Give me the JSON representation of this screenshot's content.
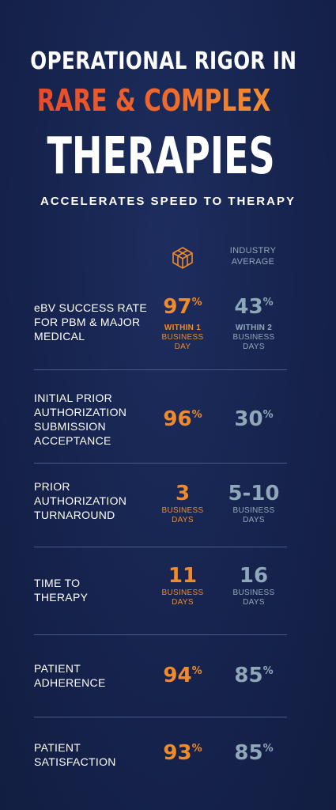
{
  "header": {
    "line1": "OPERATIONAL RIGOR IN",
    "line2": "RARE & COMPLEX",
    "line3": "THERAPIES",
    "subtitle": "ACCELERATES SPEED TO THERAPY"
  },
  "columns": {
    "ours_icon": "company-logo-icon",
    "industry_line1": "INDUSTRY",
    "industry_line2": "AVERAGE"
  },
  "colors": {
    "background": "#16234d",
    "accent_orange": "#f08a2b",
    "industry_blue": "#8fa8b9",
    "title_gradient_start": "#e84a2a",
    "title_gradient_end": "#f39a33"
  },
  "metrics": [
    {
      "label_lines": [
        "eBV SUCCESS RATE",
        "FOR PBM & MAJOR",
        "MEDICAL"
      ],
      "ours": {
        "value": "97",
        "suffix": "%",
        "sub_bold": "WITHIN 1",
        "sub_lines": [
          "BUSINESS",
          "DAY"
        ]
      },
      "industry": {
        "value": "43",
        "suffix": "%",
        "sub_bold": "WITHIN 2",
        "sub_lines": [
          "BUSINESS",
          "DAYS"
        ]
      }
    },
    {
      "label_lines": [
        "INITIAL PRIOR",
        "AUTHORIZATION",
        "SUBMISSION",
        "ACCEPTANCE"
      ],
      "ours": {
        "value": "96",
        "suffix": "%"
      },
      "industry": {
        "value": "30",
        "suffix": "%"
      }
    },
    {
      "label_lines": [
        "PRIOR",
        "AUTHORIZATION",
        "TURNAROUND"
      ],
      "ours": {
        "value": "3",
        "suffix": "",
        "sub_lines": [
          "BUSINESS",
          "DAYS"
        ]
      },
      "industry": {
        "value": "5-10",
        "suffix": "",
        "sub_lines": [
          "BUSINESS",
          "DAYS"
        ]
      }
    },
    {
      "label_lines": [
        "TIME TO",
        "THERAPY"
      ],
      "ours": {
        "value": "11",
        "suffix": "",
        "sub_lines": [
          "BUSINESS",
          "DAYS"
        ]
      },
      "industry": {
        "value": "16",
        "suffix": "",
        "sub_lines": [
          "BUSINESS",
          "DAYS"
        ]
      }
    },
    {
      "label_lines": [
        "PATIENT",
        "ADHERENCE"
      ],
      "ours": {
        "value": "94",
        "suffix": "%"
      },
      "industry": {
        "value": "85",
        "suffix": "%"
      }
    },
    {
      "label_lines": [
        "PATIENT",
        "SATISFACTION"
      ],
      "ours": {
        "value": "93",
        "suffix": "%"
      },
      "industry": {
        "value": "85",
        "suffix": "%"
      }
    }
  ]
}
